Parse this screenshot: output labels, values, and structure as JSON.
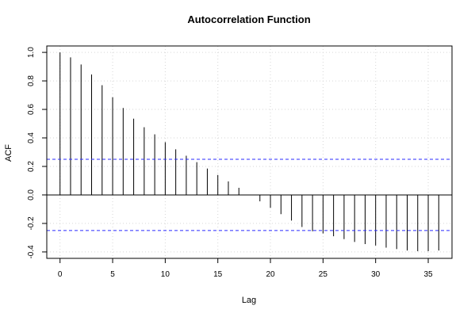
{
  "chart_data": {
    "type": "bar",
    "title": "Autocorrelation Function",
    "xlabel": "Lag",
    "ylabel": "ACF",
    "xlim": [
      -1.26,
      37.26
    ],
    "ylim": [
      -0.445,
      1.045
    ],
    "x_ticks": [
      0,
      5,
      10,
      15,
      20,
      25,
      30,
      35
    ],
    "y_ticks": [
      -0.4,
      -0.2,
      0.0,
      0.2,
      0.4,
      0.6,
      0.8,
      1.0
    ],
    "grid": true,
    "confidence_bounds": [
      0.25,
      -0.25
    ],
    "confidence_color": "#2b2bff",
    "grid_color": "#d6d6d6",
    "lags": [
      0,
      1,
      2,
      3,
      4,
      5,
      6,
      7,
      8,
      9,
      10,
      11,
      12,
      13,
      14,
      15,
      16,
      17,
      18,
      19,
      20,
      21,
      22,
      23,
      24,
      25,
      26,
      27,
      28,
      29,
      30,
      31,
      32,
      33,
      34,
      35,
      36
    ],
    "values": [
      1.0,
      0.965,
      0.915,
      0.845,
      0.77,
      0.685,
      0.61,
      0.535,
      0.475,
      0.425,
      0.37,
      0.32,
      0.275,
      0.23,
      0.185,
      0.14,
      0.095,
      0.05,
      0.0,
      -0.045,
      -0.09,
      -0.135,
      -0.18,
      -0.225,
      -0.255,
      -0.27,
      -0.29,
      -0.31,
      -0.33,
      -0.345,
      -0.355,
      -0.37,
      -0.38,
      -0.39,
      -0.395,
      -0.395,
      -0.39
    ]
  }
}
